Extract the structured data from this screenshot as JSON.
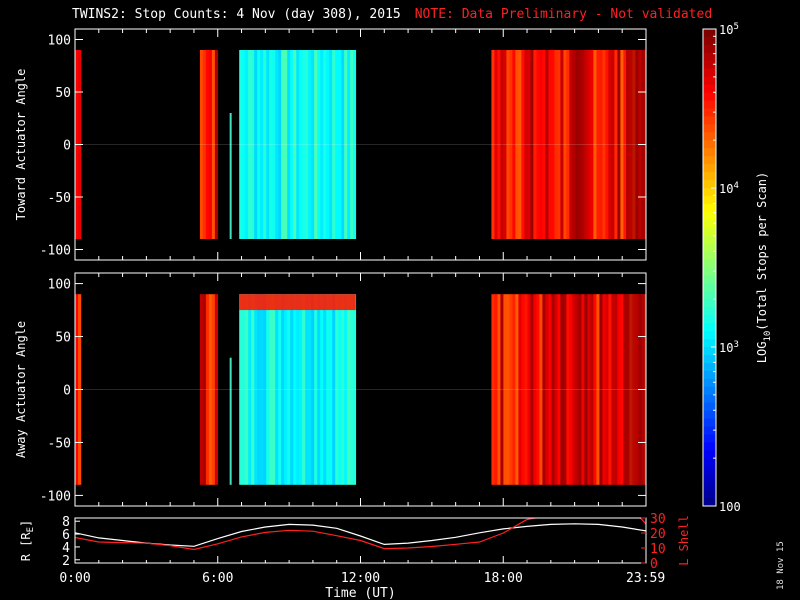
{
  "header": {
    "title": "TWINS2: Stop Counts:  4 Nov (day 308), 2015",
    "note": "NOTE: Data Preliminary - Not validated"
  },
  "stamp": "18 Nov 15",
  "colors": {
    "background": "#000000",
    "note": "#ff2020",
    "lshell": "#ff2020",
    "radius": "#ffffff"
  },
  "chart_data": [
    {
      "type": "heatmap",
      "title": "",
      "xlabel": "",
      "ylabel": "Toward Actuator Angle",
      "xlim": [
        0,
        24
      ],
      "ylim": [
        -110,
        110
      ],
      "yticks": [
        "100",
        "50",
        "0",
        "-50",
        "-100"
      ],
      "colorscale": "log",
      "colorbar": {
        "label": "LOG10(Total Stops per Scan)",
        "label_parts": [
          "LOG",
          "10",
          "(Total Stops per Scan)"
        ],
        "ticks": [
          "10^5",
          "10^4",
          "10^3",
          "100"
        ],
        "range": [
          100,
          100000
        ]
      },
      "data_blocks_hours": [
        {
          "start": 0.0,
          "end": 0.25,
          "level": "high"
        },
        {
          "start": 5.25,
          "end": 6.0,
          "level": "high"
        },
        {
          "start": 6.5,
          "end": 6.55,
          "level": "line"
        },
        {
          "start": 6.9,
          "end": 11.8,
          "level": "low"
        },
        {
          "start": 17.5,
          "end": 24.0,
          "level": "high"
        }
      ]
    },
    {
      "type": "heatmap",
      "title": "",
      "xlabel": "",
      "ylabel": "Away Actuator Angle",
      "xlim": [
        0,
        24
      ],
      "ylim": [
        -110,
        110
      ],
      "yticks": [
        "100",
        "50",
        "0",
        "-50",
        "-100"
      ],
      "data_blocks_hours": [
        {
          "start": 0.0,
          "end": 0.25,
          "level": "high"
        },
        {
          "start": 5.25,
          "end": 6.0,
          "level": "high"
        },
        {
          "start": 6.5,
          "end": 6.55,
          "level": "line"
        },
        {
          "start": 6.9,
          "end": 11.8,
          "level": "low"
        },
        {
          "start": 17.5,
          "end": 24.0,
          "level": "high"
        }
      ]
    },
    {
      "type": "line",
      "xlabel": "Time (UT)",
      "xticks": [
        "0:00",
        "6:00",
        "12:00",
        "18:00",
        "23:59"
      ],
      "y_left_label": "R [RE]",
      "y_left_label_parts": [
        "R [R",
        "E",
        "]"
      ],
      "y_left_ticks": [
        "8",
        "6",
        "4",
        "2"
      ],
      "y_left_lim": [
        1.5,
        8.5
      ],
      "y_right_label": "L Shell",
      "y_right_ticks": [
        "30",
        "20",
        "10",
        "0"
      ],
      "y_right_lim": [
        0,
        30
      ],
      "series": [
        {
          "name": "R [RE]",
          "x": [
            0,
            1,
            2,
            3,
            4,
            5,
            6,
            7,
            8,
            9,
            10,
            11,
            12,
            13,
            14,
            15,
            16,
            17,
            18,
            19,
            20,
            21,
            22,
            23,
            24
          ],
          "values": [
            6.2,
            5.4,
            5.0,
            4.6,
            4.3,
            4.1,
            5.3,
            6.4,
            7.1,
            7.5,
            7.4,
            6.9,
            5.7,
            4.4,
            4.6,
            5.0,
            5.5,
            6.2,
            6.8,
            7.2,
            7.5,
            7.6,
            7.5,
            7.1,
            6.5
          ]
        },
        {
          "name": "L Shell",
          "x": [
            0,
            1,
            2,
            3,
            4,
            5,
            6,
            7,
            8,
            9,
            10,
            11,
            12,
            13,
            14,
            15,
            16,
            17,
            18,
            19,
            20
          ],
          "values": [
            17,
            14,
            13.6,
            13.2,
            11.6,
            9,
            12.8,
            17.4,
            20.4,
            21.8,
            21.2,
            18.2,
            15,
            9.6,
            10,
            11,
            12.5,
            14,
            20,
            29,
            32
          ]
        },
        {
          "name": "L Shell (wrap)",
          "x": [
            23.65,
            23.8,
            24
          ],
          "values": [
            32,
            29.5,
            26
          ]
        }
      ]
    }
  ]
}
